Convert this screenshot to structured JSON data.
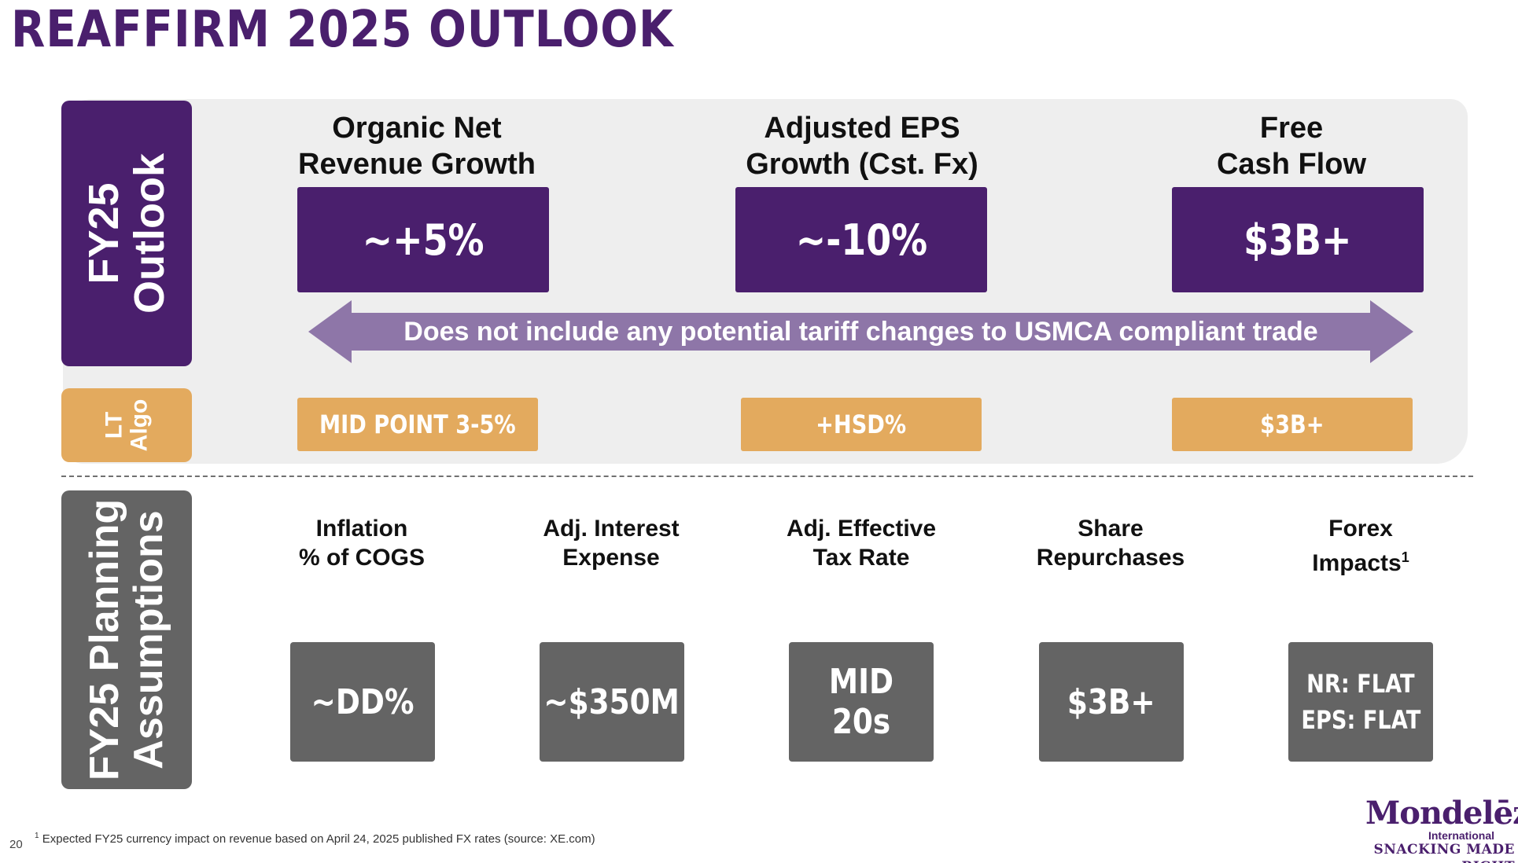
{
  "slide": {
    "title": "REAFFIRM 2025 OUTLOOK",
    "page_number": "20",
    "footnote_marker": "1",
    "footnote_text": "Expected FY25 currency impact on revenue based on April 24, 2025 published FX rates (source: XE.com)"
  },
  "side_labels": {
    "outlook_line1": "FY25",
    "outlook_line2": "Outlook",
    "algo_line1": "LT",
    "algo_line2": "Algo",
    "planning_line1": "FY25 Planning",
    "planning_line2": "Assumptions"
  },
  "outlook": [
    {
      "heading_line1": "Organic Net",
      "heading_line2": "Revenue Growth",
      "value": "~+5%",
      "lt_algo": "MID POINT 3-5%"
    },
    {
      "heading_line1": "Adjusted EPS",
      "heading_line2": "Growth (Cst. Fx)",
      "value": "~-10%",
      "lt_algo": "+HSD%"
    },
    {
      "heading_line1": "Free",
      "heading_line2": "Cash Flow",
      "value": "$3B+",
      "lt_algo": "$3B+"
    }
  ],
  "arrow_note": "Does not include any potential tariff changes to USMCA compliant trade",
  "planning": [
    {
      "heading_line1": "Inflation",
      "heading_line2": "% of COGS",
      "value": "~DD%"
    },
    {
      "heading_line1": "Adj. Interest",
      "heading_line2": "Expense",
      "value": "~$350M"
    },
    {
      "heading_line1": "Adj. Effective",
      "heading_line2": "Tax Rate",
      "value": "MID 20s"
    },
    {
      "heading_line1": "Share",
      "heading_line2": "Repurchases",
      "value": "$3B+"
    },
    {
      "heading_line1": "Forex",
      "heading_line2": "Impacts",
      "heading_sup": "1",
      "value_line1": "NR: FLAT",
      "value_line2": "EPS: FLAT"
    }
  ],
  "logo": {
    "name": "Mondelēz",
    "sub": "International",
    "tagline": "SNACKING MADE RIGHT"
  },
  "colors": {
    "purple": "#4a1f6d",
    "arrow_purple": "#8e76a8",
    "gold": "#e3aa5e",
    "gray": "#646464",
    "panel_bg": "#eeeeee"
  }
}
